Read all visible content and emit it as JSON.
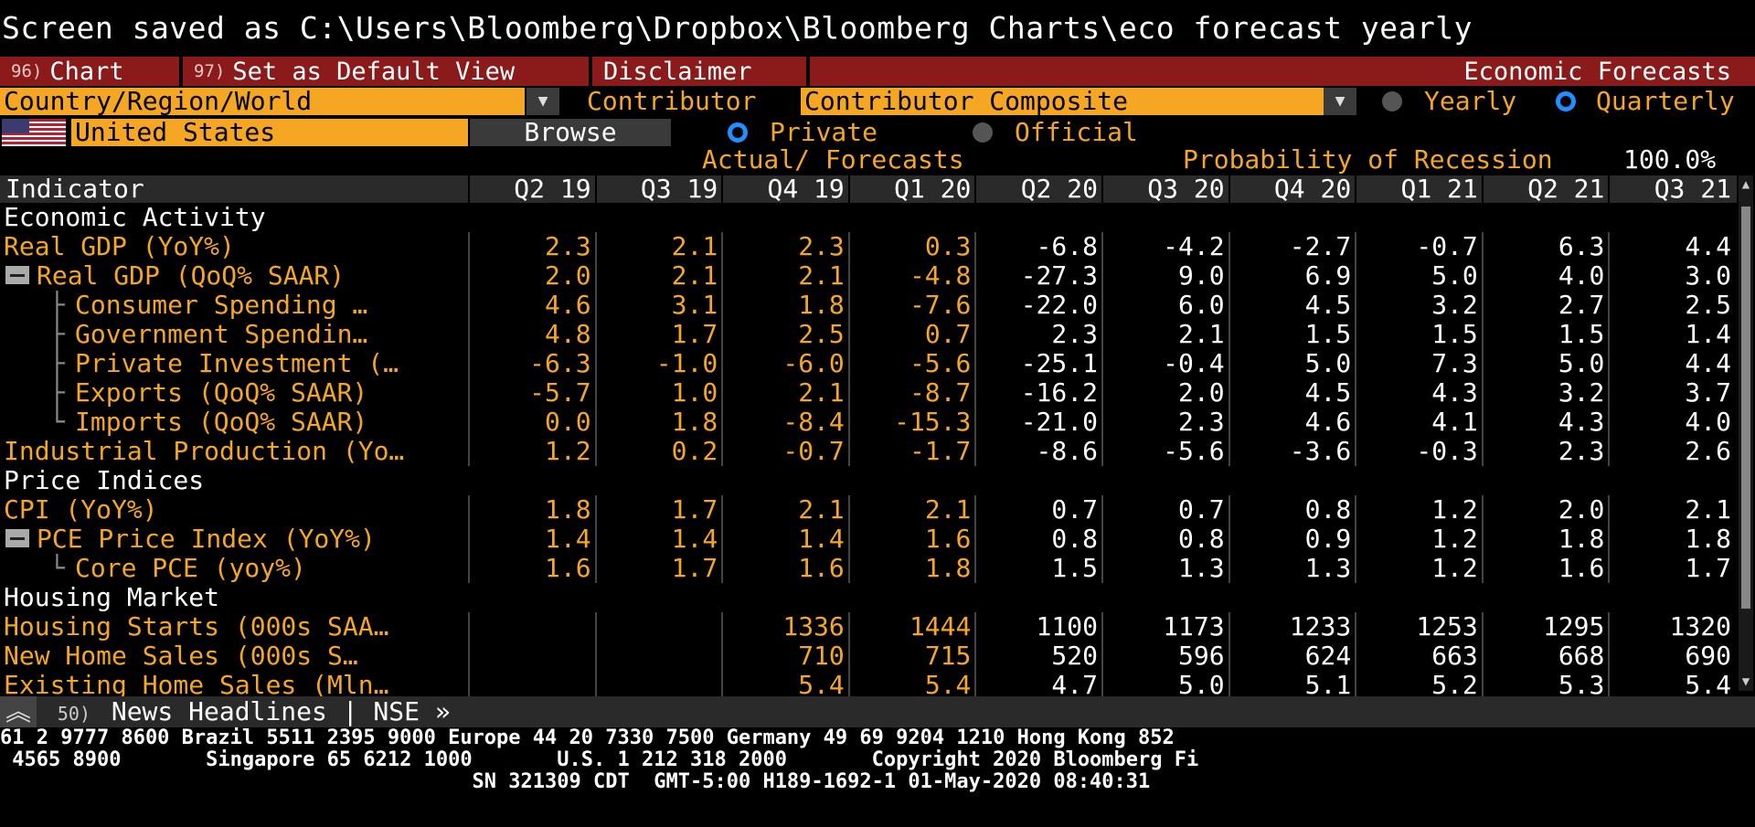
{
  "status_line": "Screen saved as C:\\Users\\Bloomberg\\Dropbox\\Bloomberg Charts\\eco forecast yearly",
  "menu": {
    "chart_num": "96)",
    "chart_label": "Chart",
    "default_num": "97)",
    "default_label": "Set as Default View",
    "disclaimer_label": "Disclaimer",
    "title": "Economic Forecasts"
  },
  "controls": {
    "region_value": "Country/Region/World",
    "contributor_label": "Contributor",
    "contributor_value": "Contributor Composite",
    "yearly_label": "Yearly",
    "quarterly_label": "Quarterly",
    "country_value": "United States",
    "browse_label": "Browse",
    "private_label": "Private",
    "official_label": "Official",
    "actual_forecasts_label": "Actual/ Forecasts",
    "recession_label": "Probability of Recession",
    "recession_value": "100.0%"
  },
  "table": {
    "indicator_header": "Indicator",
    "columns": [
      "Q2 19",
      "Q3 19",
      "Q4 19",
      "Q1 20",
      "Q2 20",
      "Q3 20",
      "Q4 20",
      "Q1 21",
      "Q2 21",
      "Q3 21"
    ],
    "rows": [
      {
        "type": "section",
        "name": "Economic Activity"
      },
      {
        "type": "row",
        "name": "Real GDP (YoY%)",
        "indent": 0,
        "values": [
          "2.3",
          "2.1",
          "2.3",
          "0.3",
          "-6.8",
          "-4.2",
          "-2.7",
          "-0.7",
          "6.3",
          "4.4"
        ]
      },
      {
        "type": "row",
        "name": "Real GDP (QoQ% SAAR)",
        "indent": 1,
        "values": [
          "2.0",
          "2.1",
          "2.1",
          "-4.8",
          "-27.3",
          "9.0",
          "6.9",
          "5.0",
          "4.0",
          "3.0"
        ]
      },
      {
        "type": "row",
        "name": "Consumer Spending …",
        "indent": 2,
        "values": [
          "4.6",
          "3.1",
          "1.8",
          "-7.6",
          "-22.0",
          "6.0",
          "4.5",
          "3.2",
          "2.7",
          "2.5"
        ]
      },
      {
        "type": "row",
        "name": "Government Spendin…",
        "indent": 2,
        "values": [
          "4.8",
          "1.7",
          "2.5",
          "0.7",
          "2.3",
          "2.1",
          "1.5",
          "1.5",
          "1.5",
          "1.4"
        ]
      },
      {
        "type": "row",
        "name": "Private Investment (…",
        "indent": 2,
        "values": [
          "-6.3",
          "-1.0",
          "-6.0",
          "-5.6",
          "-25.1",
          "-0.4",
          "5.0",
          "7.3",
          "5.0",
          "4.4"
        ]
      },
      {
        "type": "row",
        "name": "Exports (QoQ% SAAR)",
        "indent": 2,
        "values": [
          "-5.7",
          "1.0",
          "2.1",
          "-8.7",
          "-16.2",
          "2.0",
          "4.5",
          "4.3",
          "3.2",
          "3.7"
        ]
      },
      {
        "type": "row",
        "name": "Imports (QoQ% SAAR)",
        "indent": 3,
        "values": [
          "0.0",
          "1.8",
          "-8.4",
          "-15.3",
          "-21.0",
          "2.3",
          "4.6",
          "4.1",
          "4.3",
          "4.0"
        ]
      },
      {
        "type": "row",
        "name": "Industrial Production (Yo…",
        "indent": 0,
        "values": [
          "1.2",
          "0.2",
          "-0.7",
          "-1.7",
          "-8.6",
          "-5.6",
          "-3.6",
          "-0.3",
          "2.3",
          "2.6"
        ]
      },
      {
        "type": "section",
        "name": "Price Indices"
      },
      {
        "type": "row",
        "name": "CPI (YoY%)",
        "indent": 0,
        "values": [
          "1.8",
          "1.7",
          "2.1",
          "2.1",
          "0.7",
          "0.7",
          "0.8",
          "1.2",
          "2.0",
          "2.1"
        ]
      },
      {
        "type": "row",
        "name": "PCE Price Index (YoY%)",
        "indent": 1,
        "values": [
          "1.4",
          "1.4",
          "1.4",
          "1.6",
          "0.8",
          "0.8",
          "0.9",
          "1.2",
          "1.8",
          "1.8"
        ]
      },
      {
        "type": "row",
        "name": "Core PCE (yoy%)",
        "indent": 3,
        "values": [
          "1.6",
          "1.7",
          "1.6",
          "1.8",
          "1.5",
          "1.3",
          "1.3",
          "1.2",
          "1.6",
          "1.7"
        ]
      },
      {
        "type": "section",
        "name": "Housing Market"
      },
      {
        "type": "row",
        "name": "Housing Starts (000s SAA…",
        "indent": 0,
        "values": [
          "",
          "",
          "1336",
          "1444",
          "1100",
          "1173",
          "1233",
          "1253",
          "1295",
          "1320"
        ]
      },
      {
        "type": "row",
        "name": "New Home Sales (000s S…",
        "indent": 0,
        "values": [
          "",
          "",
          "710",
          "715",
          "520",
          "596",
          "624",
          "663",
          "668",
          "690"
        ]
      },
      {
        "type": "row",
        "name": "Existing Home Sales (Mln…",
        "indent": 0,
        "values": [
          "",
          "",
          "5.4",
          "5.4",
          "4.7",
          "5.0",
          "5.1",
          "5.2",
          "5.3",
          "5.4"
        ]
      }
    ]
  },
  "news": {
    "num": "50)",
    "label": "News Headlines | NSE »"
  },
  "footer": {
    "line1": "61 2 9777 8600 Brazil 5511 2395 9000 Europe 44 20 7330 7500 Germany 49 69 9204 1210 Hong Kong 852",
    "line2": " 4565 8900       Singapore 65 6212 1000       U.S. 1 212 318 2000       Copyright 2020 Bloomberg Fi",
    "line3": "                                       SN 321309 CDT  GMT-5:00 H189-1692-1 01-May-2020 08:40:31"
  },
  "colors": {
    "orange": "#f5a623",
    "menu_red": "#8b1a1a",
    "radio_blue": "#1e90ff"
  }
}
